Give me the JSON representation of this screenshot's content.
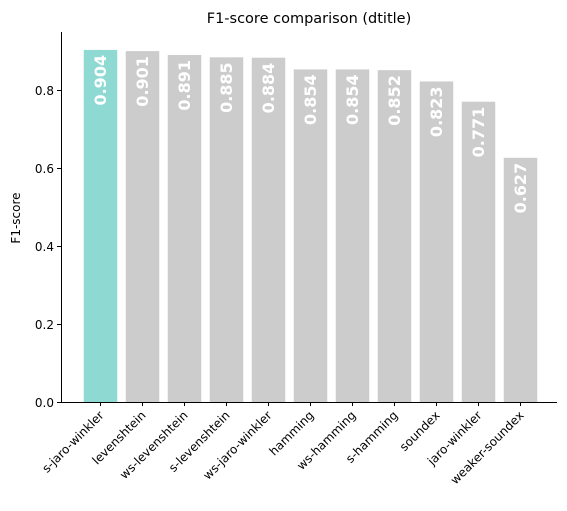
{
  "chart_data": {
    "type": "bar",
    "title": "F1-score comparison (dtitle)",
    "xlabel": "",
    "ylabel": "F1-score",
    "ylim": [
      0,
      0.95
    ],
    "yticks": [
      "0.0",
      "0.2",
      "0.4",
      "0.6",
      "0.8"
    ],
    "yticks_values": [
      0.0,
      0.2,
      0.4,
      0.6,
      0.8
    ],
    "grid": false,
    "legend": "none",
    "categories": [
      "s-jaro-winkler",
      "levenshtein",
      "ws-levenshtein",
      "s-levenshtein",
      "ws-jaro-winkler",
      "hamming",
      "ws-hamming",
      "s-hamming",
      "soundex",
      "jaro-winkler",
      "weaker-soundex"
    ],
    "values": [
      0.904,
      0.901,
      0.891,
      0.885,
      0.884,
      0.854,
      0.854,
      0.852,
      0.823,
      0.771,
      0.627
    ],
    "value_labels": [
      "0.904",
      "0.901",
      "0.891",
      "0.885",
      "0.884",
      "0.854",
      "0.854",
      "0.852",
      "0.823",
      "0.771",
      "0.627"
    ],
    "highlight_index": 0,
    "colors": {
      "highlight": "#8fd9d3",
      "default": "#cccccc",
      "value_label": "#ffffff",
      "axis": "#000000"
    }
  }
}
